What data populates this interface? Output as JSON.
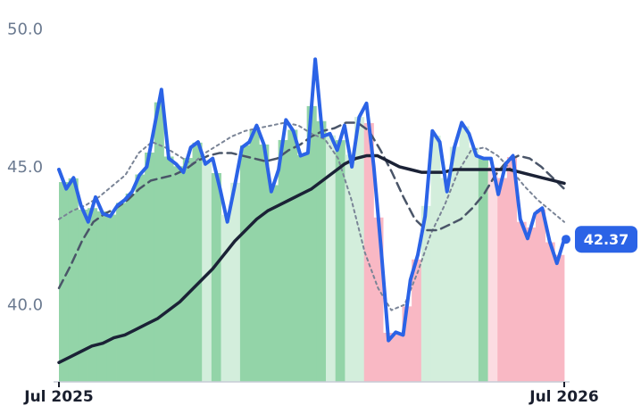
{
  "chart_data": {
    "type": "line",
    "title": "",
    "xlabel": "",
    "ylabel": "",
    "ylim": [
      37.2,
      50.4
    ],
    "x_ticks": [
      {
        "label": "Jul 2025",
        "index": 0
      },
      {
        "label": "Jul 2026",
        "index": 52
      }
    ],
    "y_ticks": [
      {
        "label": "50.0",
        "value": 50.0
      },
      {
        "label": "45.0",
        "value": 45.0
      },
      {
        "label": "40.0",
        "value": 40.0
      }
    ],
    "grid": false,
    "legend": "none",
    "last_value_label": "42.37",
    "last_value": 42.37,
    "band_colors": {
      "up": "#93d4a8",
      "up_light": "#d3eedc",
      "down": "#f9b8c4",
      "down_light": "#fcdce2"
    },
    "regime": [
      "up",
      "up",
      "up",
      "up",
      "up",
      "up",
      "up",
      "up",
      "up",
      "up",
      "up",
      "up",
      "up",
      "up",
      "up",
      "light",
      "up",
      "light",
      "light",
      "up",
      "up",
      "up",
      "up",
      "up",
      "up",
      "up",
      "up",
      "up",
      "light",
      "up",
      "light",
      "light",
      "down",
      "down",
      "down",
      "down",
      "down",
      "down",
      "light",
      "light",
      "light",
      "light",
      "light",
      "light",
      "up",
      "light",
      "down",
      "down",
      "down",
      "down",
      "down",
      "down",
      "down"
    ],
    "series": [
      {
        "name": "",
        "color": "#2b63e6",
        "values": [
          44.9,
          44.2,
          44.6,
          43.6,
          43.0,
          43.9,
          43.3,
          43.2,
          43.6,
          43.8,
          44.1,
          44.7,
          45.0,
          46.4,
          47.8,
          45.3,
          45.1,
          44.8,
          45.7,
          45.9,
          45.1,
          45.3,
          44.2,
          43.0,
          44.3,
          45.7,
          45.9,
          46.5,
          45.8,
          44.1,
          44.9,
          46.7,
          46.3,
          45.4,
          45.5,
          48.9,
          46.1,
          46.2,
          45.6,
          46.5,
          45.0,
          46.8,
          47.3,
          45.0,
          42.0,
          38.7,
          39.0,
          38.9,
          40.9,
          41.8,
          43.2,
          46.3,
          45.9,
          44.1,
          45.7,
          46.6,
          46.2,
          45.4,
          45.3,
          45.3,
          44.0,
          45.1,
          45.4,
          43.1,
          42.4,
          43.3,
          43.5,
          42.3,
          41.5,
          42.37
        ]
      },
      {
        "name": "",
        "color": "#1b2236",
        "values": [
          37.9,
          38.1,
          38.3,
          38.5,
          38.6,
          38.8,
          38.9,
          39.1,
          39.3,
          39.5,
          39.8,
          40.1,
          40.5,
          40.9,
          41.3,
          41.8,
          42.3,
          42.7,
          43.1,
          43.4,
          43.6,
          43.8,
          44.0,
          44.2,
          44.5,
          44.8,
          45.1,
          45.3,
          45.4,
          45.4,
          45.2,
          45.0,
          44.9,
          44.8,
          44.8,
          44.8,
          44.9,
          44.9,
          44.9,
          44.9,
          44.9,
          44.9,
          44.8,
          44.7,
          44.6,
          44.5,
          44.4
        ]
      },
      {
        "name": "",
        "color": "#4a5568",
        "values": [
          40.6,
          41.4,
          42.3,
          43.0,
          43.3,
          43.5,
          43.8,
          44.2,
          44.5,
          44.6,
          44.7,
          44.9,
          45.2,
          45.4,
          45.5,
          45.5,
          45.4,
          45.3,
          45.2,
          45.3,
          45.6,
          45.8,
          46.1,
          46.3,
          46.4,
          46.6,
          46.6,
          46.3,
          45.6,
          44.8,
          43.9,
          43.1,
          42.7,
          42.7,
          42.9,
          43.1,
          43.5,
          44.0,
          44.7,
          45.2,
          45.4,
          45.3,
          45.0,
          44.6,
          44.2
        ]
      },
      {
        "name": "",
        "color": "#7a8496",
        "values": [
          43.1,
          43.4,
          43.6,
          43.9,
          44.3,
          44.7,
          45.5,
          45.9,
          45.7,
          45.4,
          45.1,
          45.5,
          45.8,
          46.1,
          46.3,
          46.4,
          46.5,
          46.6,
          46.5,
          46.2,
          46.0,
          45.3,
          43.8,
          41.9,
          40.6,
          39.8,
          40.0,
          41.2,
          42.6,
          43.6,
          44.8,
          45.6,
          45.7,
          45.4,
          44.9,
          44.3,
          43.8,
          43.4,
          43.0
        ]
      }
    ]
  }
}
